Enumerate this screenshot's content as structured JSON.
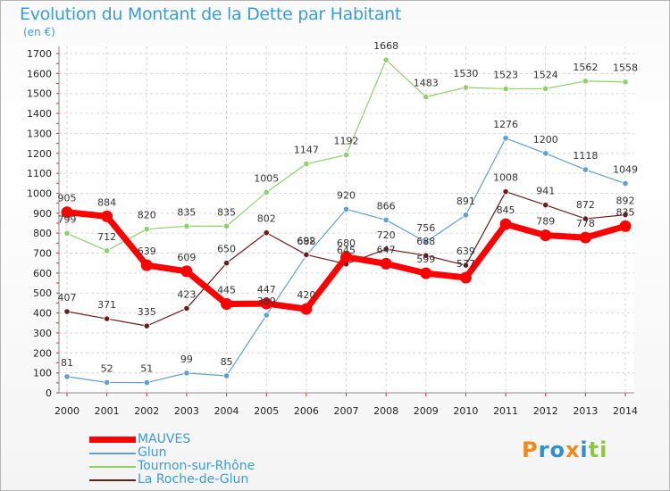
{
  "chart_data": {
    "type": "line",
    "title": "Evolution du Montant de la Dette par Habitant",
    "subtitle": "(en €)",
    "xlabel": "",
    "ylabel": "",
    "ylim": [
      0,
      1700
    ],
    "yticks": [
      0,
      100,
      200,
      300,
      400,
      500,
      600,
      700,
      800,
      900,
      1000,
      1100,
      1200,
      1300,
      1400,
      1500,
      1600,
      1700
    ],
    "x": [
      "2000",
      "2001",
      "2002",
      "2003",
      "2004",
      "2005",
      "2006",
      "2007",
      "2008",
      "2009",
      "2010",
      "2011",
      "2012",
      "2013",
      "2014"
    ],
    "grid": true,
    "legend_position": "bottom-left",
    "series": [
      {
        "name": "MAUVES",
        "color": "#ff0000",
        "values": [
          905,
          884,
          639,
          609,
          445,
          447,
          420,
          680,
          647,
          599,
          577,
          845,
          789,
          778,
          835
        ]
      },
      {
        "name": "Glun",
        "color": "#5fa0cf",
        "values": [
          81,
          52,
          51,
          99,
          85,
          389,
          688,
          920,
          866,
          756,
          891,
          1276,
          1200,
          1118,
          1049
        ]
      },
      {
        "name": "Tournon-sur-Rhône",
        "color": "#8ed16b",
        "values": [
          799,
          712,
          820,
          835,
          835,
          1005,
          1147,
          1192,
          1668,
          1483,
          1530,
          1523,
          1524,
          1562,
          1558
        ]
      },
      {
        "name": "La Roche-de-Glun",
        "color": "#6b1d1d",
        "values": [
          407,
          371,
          335,
          423,
          650,
          802,
          692,
          645,
          720,
          688,
          639,
          1008,
          941,
          872,
          892
        ]
      }
    ]
  },
  "logo": {
    "text": "Proxiti",
    "letters": [
      {
        "char": "P",
        "color": "#ef8a1f"
      },
      {
        "char": "r",
        "color": "#2f8fd1"
      },
      {
        "char": "o",
        "color": "#2f8fd1"
      },
      {
        "char": "x",
        "color": "#ef8a1f"
      },
      {
        "char": "i",
        "color": "#2f8fd1"
      },
      {
        "char": "t",
        "color": "#8dc63f"
      },
      {
        "char": "i",
        "color": "#8dc63f"
      }
    ]
  }
}
